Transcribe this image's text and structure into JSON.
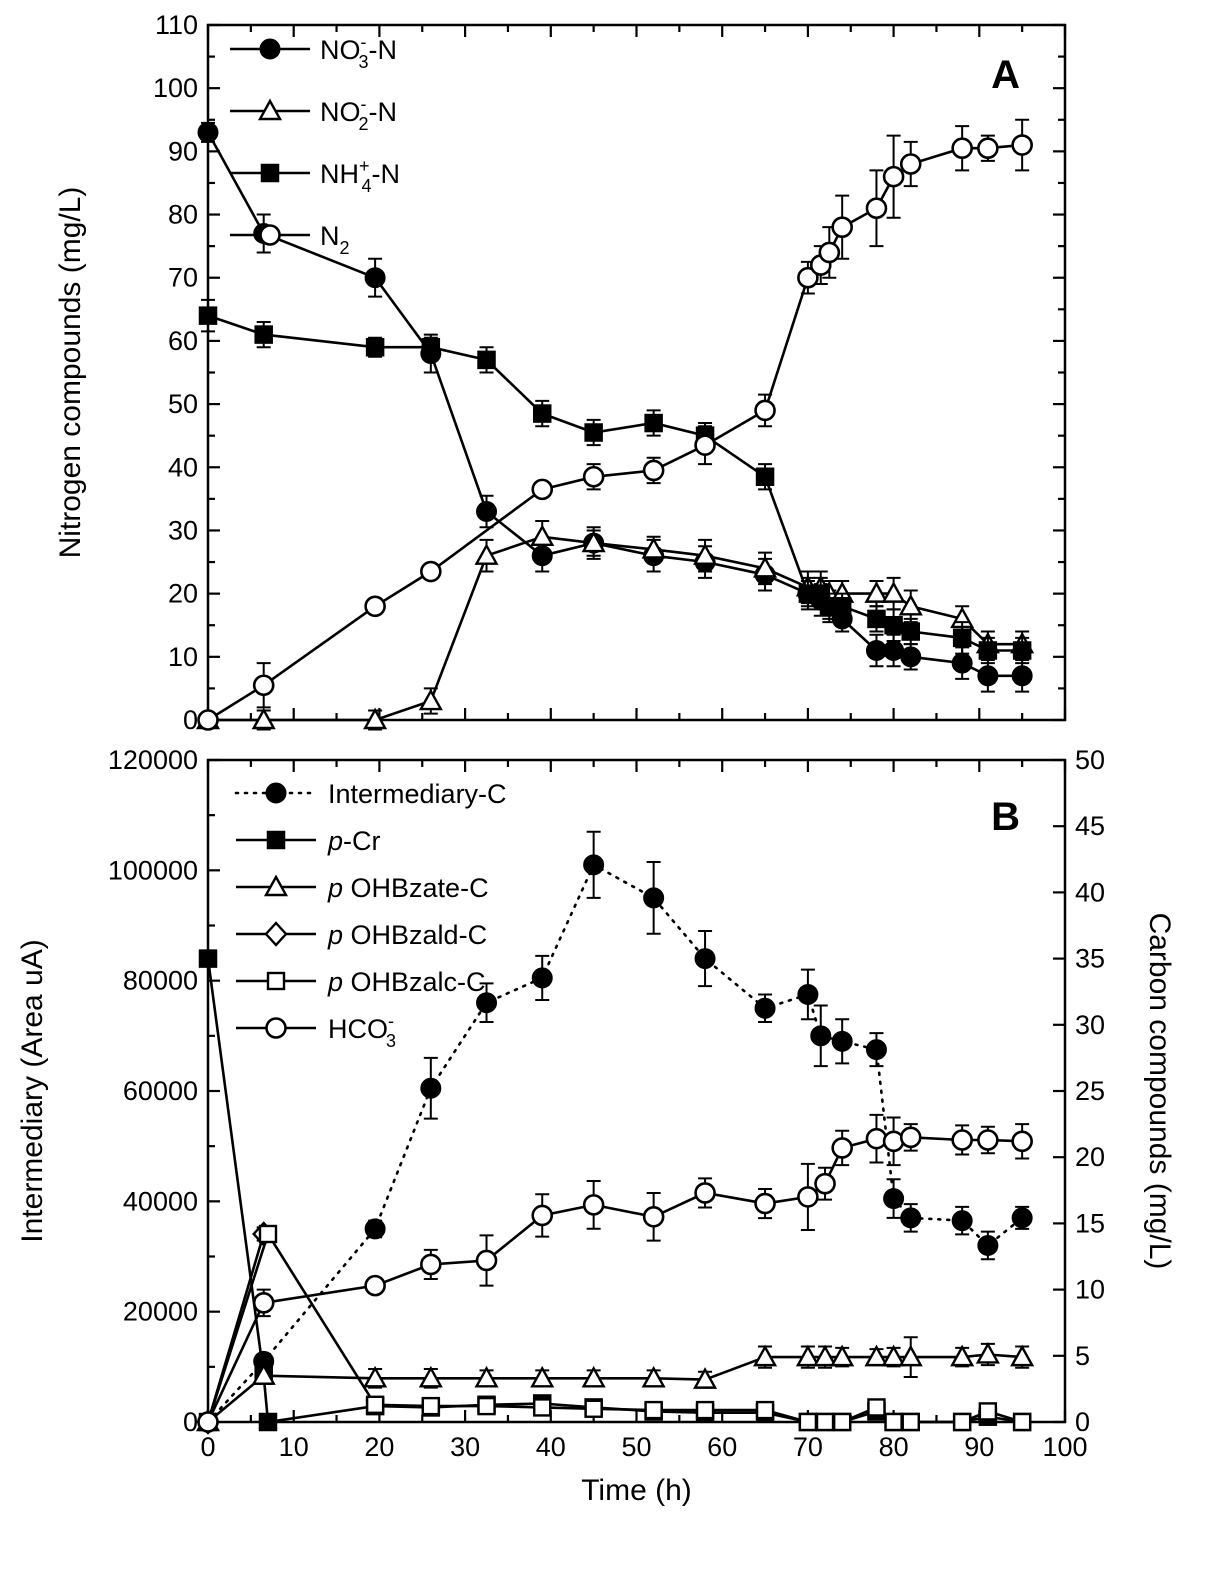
{
  "colors": {
    "ink": "#000000",
    "background": "#ffffff"
  },
  "chart_data": [
    {
      "type": "line",
      "panel": "A",
      "xlabel": "",
      "ylabel": "Nitrogen compounds (mg/L)",
      "xlim": [
        0,
        100
      ],
      "ylim": [
        0,
        110
      ],
      "x_ticks": [
        0,
        10,
        20,
        30,
        40,
        50,
        60,
        70,
        80,
        90,
        100
      ],
      "y_ticks": [
        "0",
        "10",
        "20",
        "30",
        "40",
        "50",
        "60",
        "70",
        "80",
        "90",
        "100",
        "110"
      ],
      "legend_position": "top-left",
      "series": [
        {
          "name": "NO3- -N",
          "legend": {
            "base": "NO",
            "sup": "-",
            "sub": "3",
            "tail": "-N"
          },
          "marker": "filled-circle",
          "line": "solid",
          "x": [
            0,
            6.5,
            19.5,
            26,
            32.5,
            39,
            45,
            52,
            58,
            65,
            70,
            71.5,
            72.5,
            74,
            78,
            80,
            82,
            88,
            91,
            95
          ],
          "y": [
            93,
            77,
            70,
            58,
            33,
            26,
            28,
            26,
            25,
            23,
            20,
            19,
            18,
            16,
            11,
            11,
            10,
            9,
            7,
            7
          ],
          "err": [
            1.5,
            3,
            3,
            3,
            2.5,
            2.5,
            2.5,
            2.5,
            2.5,
            2.5,
            2.5,
            2.5,
            2.5,
            2,
            2.5,
            2.5,
            2,
            2.5,
            2.5,
            2.5
          ]
        },
        {
          "name": "NO2- -N",
          "legend": {
            "base": "NO",
            "sup": "-",
            "sub": "2",
            "tail": "-N"
          },
          "marker": "open-triangle",
          "line": "solid",
          "x": [
            0,
            6.5,
            19.5,
            26,
            32.5,
            39,
            45,
            52,
            58,
            65,
            70,
            71.5,
            72.5,
            74,
            78,
            80,
            82,
            88,
            91,
            95
          ],
          "y": [
            0,
            0,
            0,
            3,
            26,
            29,
            28,
            27,
            26,
            24,
            21,
            21,
            20,
            20,
            20,
            20,
            18,
            16,
            12,
            12
          ],
          "err": [
            0,
            1.5,
            1.5,
            2,
            2.5,
            2.5,
            2,
            2,
            2.5,
            2.5,
            2.5,
            2.5,
            2,
            2,
            2,
            2.5,
            2.5,
            2,
            2,
            2
          ]
        },
        {
          "name": "NH4+ -N",
          "legend": {
            "base": "NH",
            "sup": "+",
            "sub": "4",
            "tail": "-N"
          },
          "marker": "filled-square",
          "line": "solid",
          "x": [
            0,
            6.5,
            19.5,
            26,
            32.5,
            39,
            45,
            52,
            58,
            65,
            70,
            71.5,
            72.5,
            74,
            78,
            80,
            82,
            88,
            91,
            95
          ],
          "y": [
            64,
            61,
            59,
            59,
            57,
            48.5,
            45.5,
            47,
            45,
            38.5,
            20,
            20,
            18,
            18,
            16,
            15,
            14,
            13,
            11,
            11
          ],
          "err": [
            2.5,
            2,
            1.5,
            1.5,
            2,
            2,
            2,
            2,
            2,
            2,
            2,
            2.5,
            2,
            2,
            2,
            2.5,
            2,
            2.5,
            2,
            2
          ]
        },
        {
          "name": "N2",
          "legend": {
            "base": "N",
            "sup": "",
            "sub": "2",
            "tail": ""
          },
          "marker": "open-circle",
          "line": "solid",
          "x": [
            0,
            6.5,
            19.5,
            26,
            39,
            45,
            52,
            58,
            65,
            70,
            71.5,
            72.5,
            74,
            78,
            80,
            82,
            88,
            91,
            95
          ],
          "y": [
            0,
            5.5,
            18,
            23.5,
            36.5,
            38.5,
            39.5,
            43.5,
            49,
            70,
            72,
            74,
            78,
            81,
            86,
            88,
            90.5,
            90.5,
            91
          ],
          "err": [
            0,
            3.5,
            1,
            1,
            1,
            2,
            2,
            3,
            2.5,
            2.5,
            3,
            4,
            5,
            6,
            6.5,
            3.5,
            3.5,
            2,
            4
          ]
        }
      ]
    },
    {
      "type": "line",
      "panel": "B",
      "xlabel": "Time (h)",
      "ylabel": "Intermediary (Area uA)",
      "ylabel_right": "Carbon compounds (mg/L)",
      "xlim": [
        0,
        100
      ],
      "ylim": [
        0,
        120000
      ],
      "ylim_right": [
        0,
        50
      ],
      "x_ticks": [
        "0",
        "10",
        "20",
        "30",
        "40",
        "50",
        "60",
        "70",
        "80",
        "90",
        "100"
      ],
      "y_ticks": [
        "0",
        "20000",
        "40000",
        "60000",
        "80000",
        "100000",
        "120000"
      ],
      "y_ticks_right": [
        "0",
        "5",
        "10",
        "15",
        "20",
        "25",
        "30",
        "35",
        "40",
        "45",
        "50"
      ],
      "legend_position": "top-left",
      "series": [
        {
          "name": "Intermediary-C",
          "legend": {
            "italic": "",
            "text": "Intermediary-C",
            "sup": "",
            "sub": ""
          },
          "axis": "left",
          "marker": "filled-circle",
          "line": "dotted",
          "x": [
            0,
            6.5,
            19.5,
            26,
            32.5,
            39,
            45,
            52,
            58,
            65,
            70,
            71.5,
            74,
            78,
            80,
            82,
            88,
            91,
            95
          ],
          "y": [
            0,
            11000,
            35000,
            60500,
            76000,
            80500,
            101000,
            95000,
            84000,
            75000,
            77500,
            70000,
            69000,
            67500,
            40500,
            37000,
            36500,
            32000,
            37000
          ],
          "err": [
            0,
            1000,
            1500,
            5500,
            3500,
            4000,
            6000,
            6500,
            5000,
            2500,
            4500,
            5500,
            4000,
            3000,
            3500,
            2500,
            2500,
            2500,
            2000
          ]
        },
        {
          "name": "p-Cr",
          "legend": {
            "italic": "p",
            "text": "-Cr",
            "sup": "",
            "sub": ""
          },
          "axis": "right",
          "marker": "filled-square",
          "line": "solid",
          "x": [
            0,
            6.5,
            7,
            19.5,
            26,
            32.5,
            39,
            45,
            52,
            58,
            65,
            70,
            72,
            74,
            78,
            80,
            82,
            88,
            91,
            95
          ],
          "y": [
            35,
            3.5,
            0,
            1.2,
            1.1,
            1.3,
            1.4,
            1.1,
            0.8,
            0.7,
            0.7,
            0,
            0,
            0,
            0.8,
            0,
            0,
            0,
            0.4,
            0
          ],
          "err": [
            0.5,
            0.5,
            0,
            0.5,
            0.5,
            0.4,
            0.4,
            0.4,
            0.4,
            0.3,
            0.4,
            0,
            0,
            0,
            0.4,
            0,
            0,
            0,
            0.3,
            0
          ]
        },
        {
          "name": "p OHBzate-C",
          "legend": {
            "italic": "p",
            "text": " OHBzate-C",
            "sup": "",
            "sub": ""
          },
          "axis": "right",
          "marker": "open-triangle",
          "line": "solid",
          "x": [
            0,
            6.5,
            19.5,
            26,
            32.5,
            39,
            45,
            52,
            58,
            65,
            70,
            72,
            74,
            78,
            80,
            82,
            88,
            91,
            95
          ],
          "y": [
            0,
            3.5,
            3.3,
            3.3,
            3.3,
            3.3,
            3.3,
            3.3,
            3.2,
            4.9,
            4.9,
            4.9,
            4.9,
            4.9,
            4.9,
            4.9,
            4.9,
            5.1,
            4.9
          ],
          "err": [
            0,
            0.5,
            0.7,
            0.7,
            0.6,
            0.6,
            0.6,
            0.6,
            0.6,
            0.8,
            0.8,
            0.8,
            0.7,
            0.6,
            0.7,
            1.5,
            0.7,
            0.8,
            0.8
          ]
        },
        {
          "name": "p OHBzald-C",
          "legend": {
            "italic": "p",
            "text": " OHBzald-C",
            "sup": "",
            "sub": ""
          },
          "axis": "right",
          "marker": "open-diamond",
          "line": "solid",
          "x": [
            0,
            6.5
          ],
          "y": [
            0,
            14.2
          ],
          "err": [
            0,
            0.5
          ]
        },
        {
          "name": "p OHBzalc-C",
          "legend": {
            "italic": "p",
            "text": " OHBzalc-C",
            "sup": "",
            "sub": ""
          },
          "axis": "right",
          "marker": "open-square",
          "line": "solid",
          "x": [
            0,
            7,
            19.5,
            26,
            32.5,
            39,
            45,
            52,
            58,
            65,
            70,
            72,
            74,
            78,
            80,
            82,
            88,
            91,
            95
          ],
          "y": [
            0,
            14.2,
            1.3,
            1.2,
            1.2,
            1.1,
            1.0,
            0.9,
            0.9,
            0.9,
            0,
            0,
            0,
            1.1,
            0,
            0,
            0,
            0.8,
            0
          ],
          "err": [
            0,
            0.4,
            0.4,
            0.4,
            0.4,
            0.4,
            0.4,
            0.3,
            0.3,
            0.3,
            0,
            0,
            0,
            0.3,
            0,
            0,
            0,
            0.3,
            0
          ]
        },
        {
          "name": "HCO3-",
          "legend": {
            "italic": "",
            "text": "HCO",
            "sup": "-",
            "sub": "3"
          },
          "axis": "right",
          "marker": "open-circle",
          "line": "solid",
          "x": [
            0,
            6.5,
            19.5,
            26,
            32.5,
            39,
            45,
            52,
            58,
            65,
            70,
            72,
            74,
            78,
            80,
            82,
            88,
            91,
            95
          ],
          "y": [
            0,
            9,
            10.3,
            11.9,
            12.2,
            15.6,
            16.4,
            15.5,
            17.3,
            16.5,
            17,
            18,
            20.7,
            21.4,
            21.2,
            21.5,
            21.3,
            21.3,
            21.2
          ],
          "err": [
            0,
            1,
            0.5,
            1.1,
            1.9,
            1.6,
            1.8,
            1.8,
            1.1,
            1.1,
            2.5,
            1.2,
            1.3,
            1.8,
            1.8,
            1.0,
            1.1,
            1.0,
            1.3
          ]
        }
      ]
    }
  ]
}
